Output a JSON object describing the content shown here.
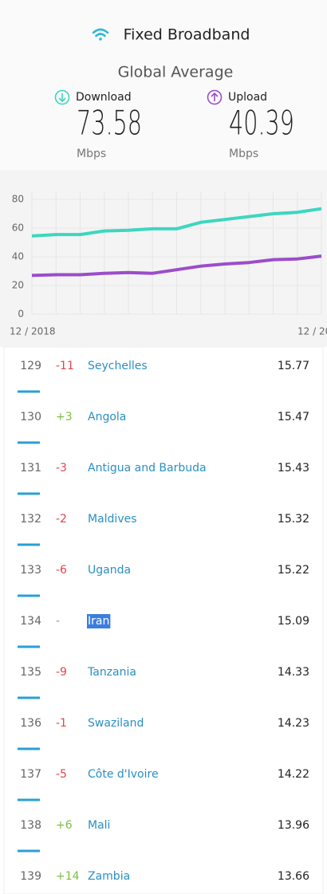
{
  "header": {
    "title": "Fixed Broadband",
    "subtitle": "Global Average",
    "download": {
      "label": "Download",
      "value": "73.58",
      "unit": "Mbps"
    },
    "upload": {
      "label": "Upload",
      "value": "40.39",
      "unit": "Mbps"
    }
  },
  "chart_data": {
    "type": "line",
    "categories": [
      "12 / 2018",
      null,
      null,
      null,
      null,
      null,
      null,
      null,
      null,
      null,
      null,
      null,
      "12 / 20"
    ],
    "series": [
      {
        "color": "#3dd6c0",
        "values": [
          54.5,
          55.5,
          55.5,
          58,
          58.5,
          59.5,
          59.5,
          64,
          66,
          68,
          70,
          71,
          73.5
        ]
      },
      {
        "color": "#9b4dca",
        "values": [
          27,
          27.5,
          27.5,
          28.5,
          29,
          28.5,
          31,
          33.5,
          35,
          36,
          38,
          38.5,
          40.5
        ]
      }
    ],
    "ylim": [
      0,
      80
    ],
    "yticks": [
      0,
      20,
      40,
      60,
      80
    ],
    "grid": true
  },
  "table": {
    "rows": [
      [
        "129",
        "-11",
        "Seychelles",
        "15.77"
      ],
      [
        "130",
        "+3",
        "Angola",
        "15.47"
      ],
      [
        "131",
        "-3",
        "Antigua and Barbuda",
        "15.43"
      ],
      [
        "132",
        "-2",
        "Maldives",
        "15.32"
      ],
      [
        "133",
        "-6",
        "Uganda",
        "15.22"
      ],
      [
        "134",
        "-",
        "Iran",
        "15.09"
      ],
      [
        "135",
        "-9",
        "Tanzania",
        "14.33"
      ],
      [
        "136",
        "-1",
        "Swaziland",
        "14.23"
      ],
      [
        "137",
        "-5",
        "Côte d'Ivoire",
        "14.22"
      ],
      [
        "138",
        "+6",
        "Mali",
        "13.96"
      ],
      [
        "139",
        "+14",
        "Zambia",
        "13.66"
      ]
    ]
  }
}
